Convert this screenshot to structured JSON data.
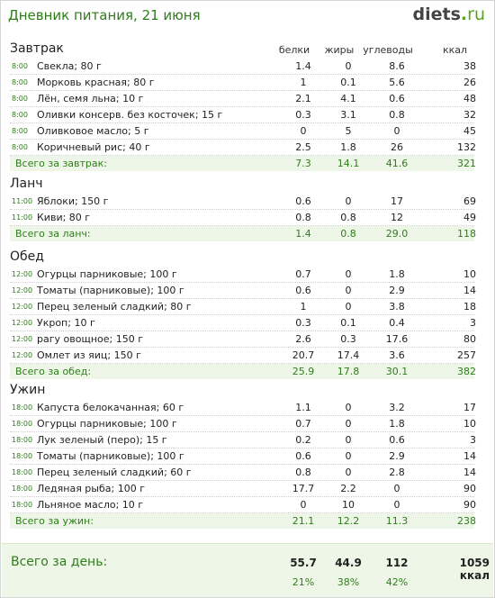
{
  "header": {
    "title": "Дневник питания, 21 июня",
    "logo": {
      "main": "diets",
      "dot": ".",
      "tld": "ru"
    }
  },
  "columns": {
    "protein": "белки",
    "fat": "жиры",
    "carbs": "углеводы",
    "kcal": "ккал"
  },
  "meals": [
    {
      "title": "Завтрак",
      "items": [
        {
          "time": "8:00",
          "name": "Свекла; 80 г",
          "protein": "1.4",
          "fat": "0",
          "carbs": "8.6",
          "kcal": "38"
        },
        {
          "time": "8:00",
          "name": "Морковь красная; 80 г",
          "protein": "1",
          "fat": "0.1",
          "carbs": "5.6",
          "kcal": "26"
        },
        {
          "time": "8:00",
          "name": "Лён, семя льна; 10 г",
          "protein": "2.1",
          "fat": "4.1",
          "carbs": "0.6",
          "kcal": "48"
        },
        {
          "time": "8:00",
          "name": "Оливки консерв. без косточек; 15 г",
          "protein": "0.3",
          "fat": "3.1",
          "carbs": "0.8",
          "kcal": "32"
        },
        {
          "time": "8:00",
          "name": "Оливковое масло; 5 г",
          "protein": "0",
          "fat": "5",
          "carbs": "0",
          "kcal": "45"
        },
        {
          "time": "8:00",
          "name": "Коричневый рис; 40 г",
          "protein": "2.5",
          "fat": "1.8",
          "carbs": "26",
          "kcal": "132"
        }
      ],
      "total": {
        "label": "Всего за завтрак:",
        "protein": "7.3",
        "fat": "14.1",
        "carbs": "41.6",
        "kcal": "321"
      }
    },
    {
      "title": "Ланч",
      "items": [
        {
          "time": "11:00",
          "name": "Яблоки; 150 г",
          "protein": "0.6",
          "fat": "0",
          "carbs": "17",
          "kcal": "69"
        },
        {
          "time": "11:00",
          "name": "Киви; 80 г",
          "protein": "0.8",
          "fat": "0.8",
          "carbs": "12",
          "kcal": "49"
        }
      ],
      "total": {
        "label": "Всего за ланч:",
        "protein": "1.4",
        "fat": "0.8",
        "carbs": "29.0",
        "kcal": "118"
      }
    },
    {
      "title": "Обед",
      "items": [
        {
          "time": "12:00",
          "name": "Огурцы парниковые; 100 г",
          "protein": "0.7",
          "fat": "0",
          "carbs": "1.8",
          "kcal": "10"
        },
        {
          "time": "12:00",
          "name": "Томаты (парниковые); 100 г",
          "protein": "0.6",
          "fat": "0",
          "carbs": "2.9",
          "kcal": "14"
        },
        {
          "time": "12:00",
          "name": "Перец зеленый сладкий; 80 г",
          "protein": "1",
          "fat": "0",
          "carbs": "3.8",
          "kcal": "18"
        },
        {
          "time": "12:00",
          "name": "Укроп; 10 г",
          "protein": "0.3",
          "fat": "0.1",
          "carbs": "0.4",
          "kcal": "3"
        },
        {
          "time": "12:00",
          "name": "рагу овощное; 150 г",
          "protein": "2.6",
          "fat": "0.3",
          "carbs": "17.6",
          "kcal": "80"
        },
        {
          "time": "12:00",
          "name": "Омлет из яиц; 150 г",
          "protein": "20.7",
          "fat": "17.4",
          "carbs": "3.6",
          "kcal": "257"
        }
      ],
      "total": {
        "label": "Всего за обед:",
        "protein": "25.9",
        "fat": "17.8",
        "carbs": "30.1",
        "kcal": "382"
      }
    },
    {
      "title": "Ужин",
      "items": [
        {
          "time": "18:00",
          "name": "Капуста белокачанная; 60 г",
          "protein": "1.1",
          "fat": "0",
          "carbs": "3.2",
          "kcal": "17"
        },
        {
          "time": "18:00",
          "name": "Огурцы парниковые; 100 г",
          "protein": "0.7",
          "fat": "0",
          "carbs": "1.8",
          "kcal": "10"
        },
        {
          "time": "18:00",
          "name": "Лук зеленый (перо); 15 г",
          "protein": "0.2",
          "fat": "0",
          "carbs": "0.6",
          "kcal": "3"
        },
        {
          "time": "18:00",
          "name": "Томаты (парниковые); 100 г",
          "protein": "0.6",
          "fat": "0",
          "carbs": "2.9",
          "kcal": "14"
        },
        {
          "time": "18:00",
          "name": "Перец зеленый сладкий; 60 г",
          "protein": "0.8",
          "fat": "0",
          "carbs": "2.8",
          "kcal": "14"
        },
        {
          "time": "18:00",
          "name": "Ледяная рыба; 100 г",
          "protein": "17.7",
          "fat": "2.2",
          "carbs": "0",
          "kcal": "90"
        },
        {
          "time": "18:00",
          "name": "Льняное масло; 10 г",
          "protein": "0",
          "fat": "10",
          "carbs": "0",
          "kcal": "90"
        }
      ],
      "total": {
        "label": "Всего за ужин:",
        "protein": "21.1",
        "fat": "12.2",
        "carbs": "11.3",
        "kcal": "238"
      }
    }
  ],
  "day_total": {
    "label": "Всего за день:",
    "protein": "55.7",
    "fat": "44.9",
    "carbs": "112",
    "kcal": "1059 ккал",
    "protein_pct": "21%",
    "fat_pct": "38%",
    "carbs_pct": "42%"
  }
}
